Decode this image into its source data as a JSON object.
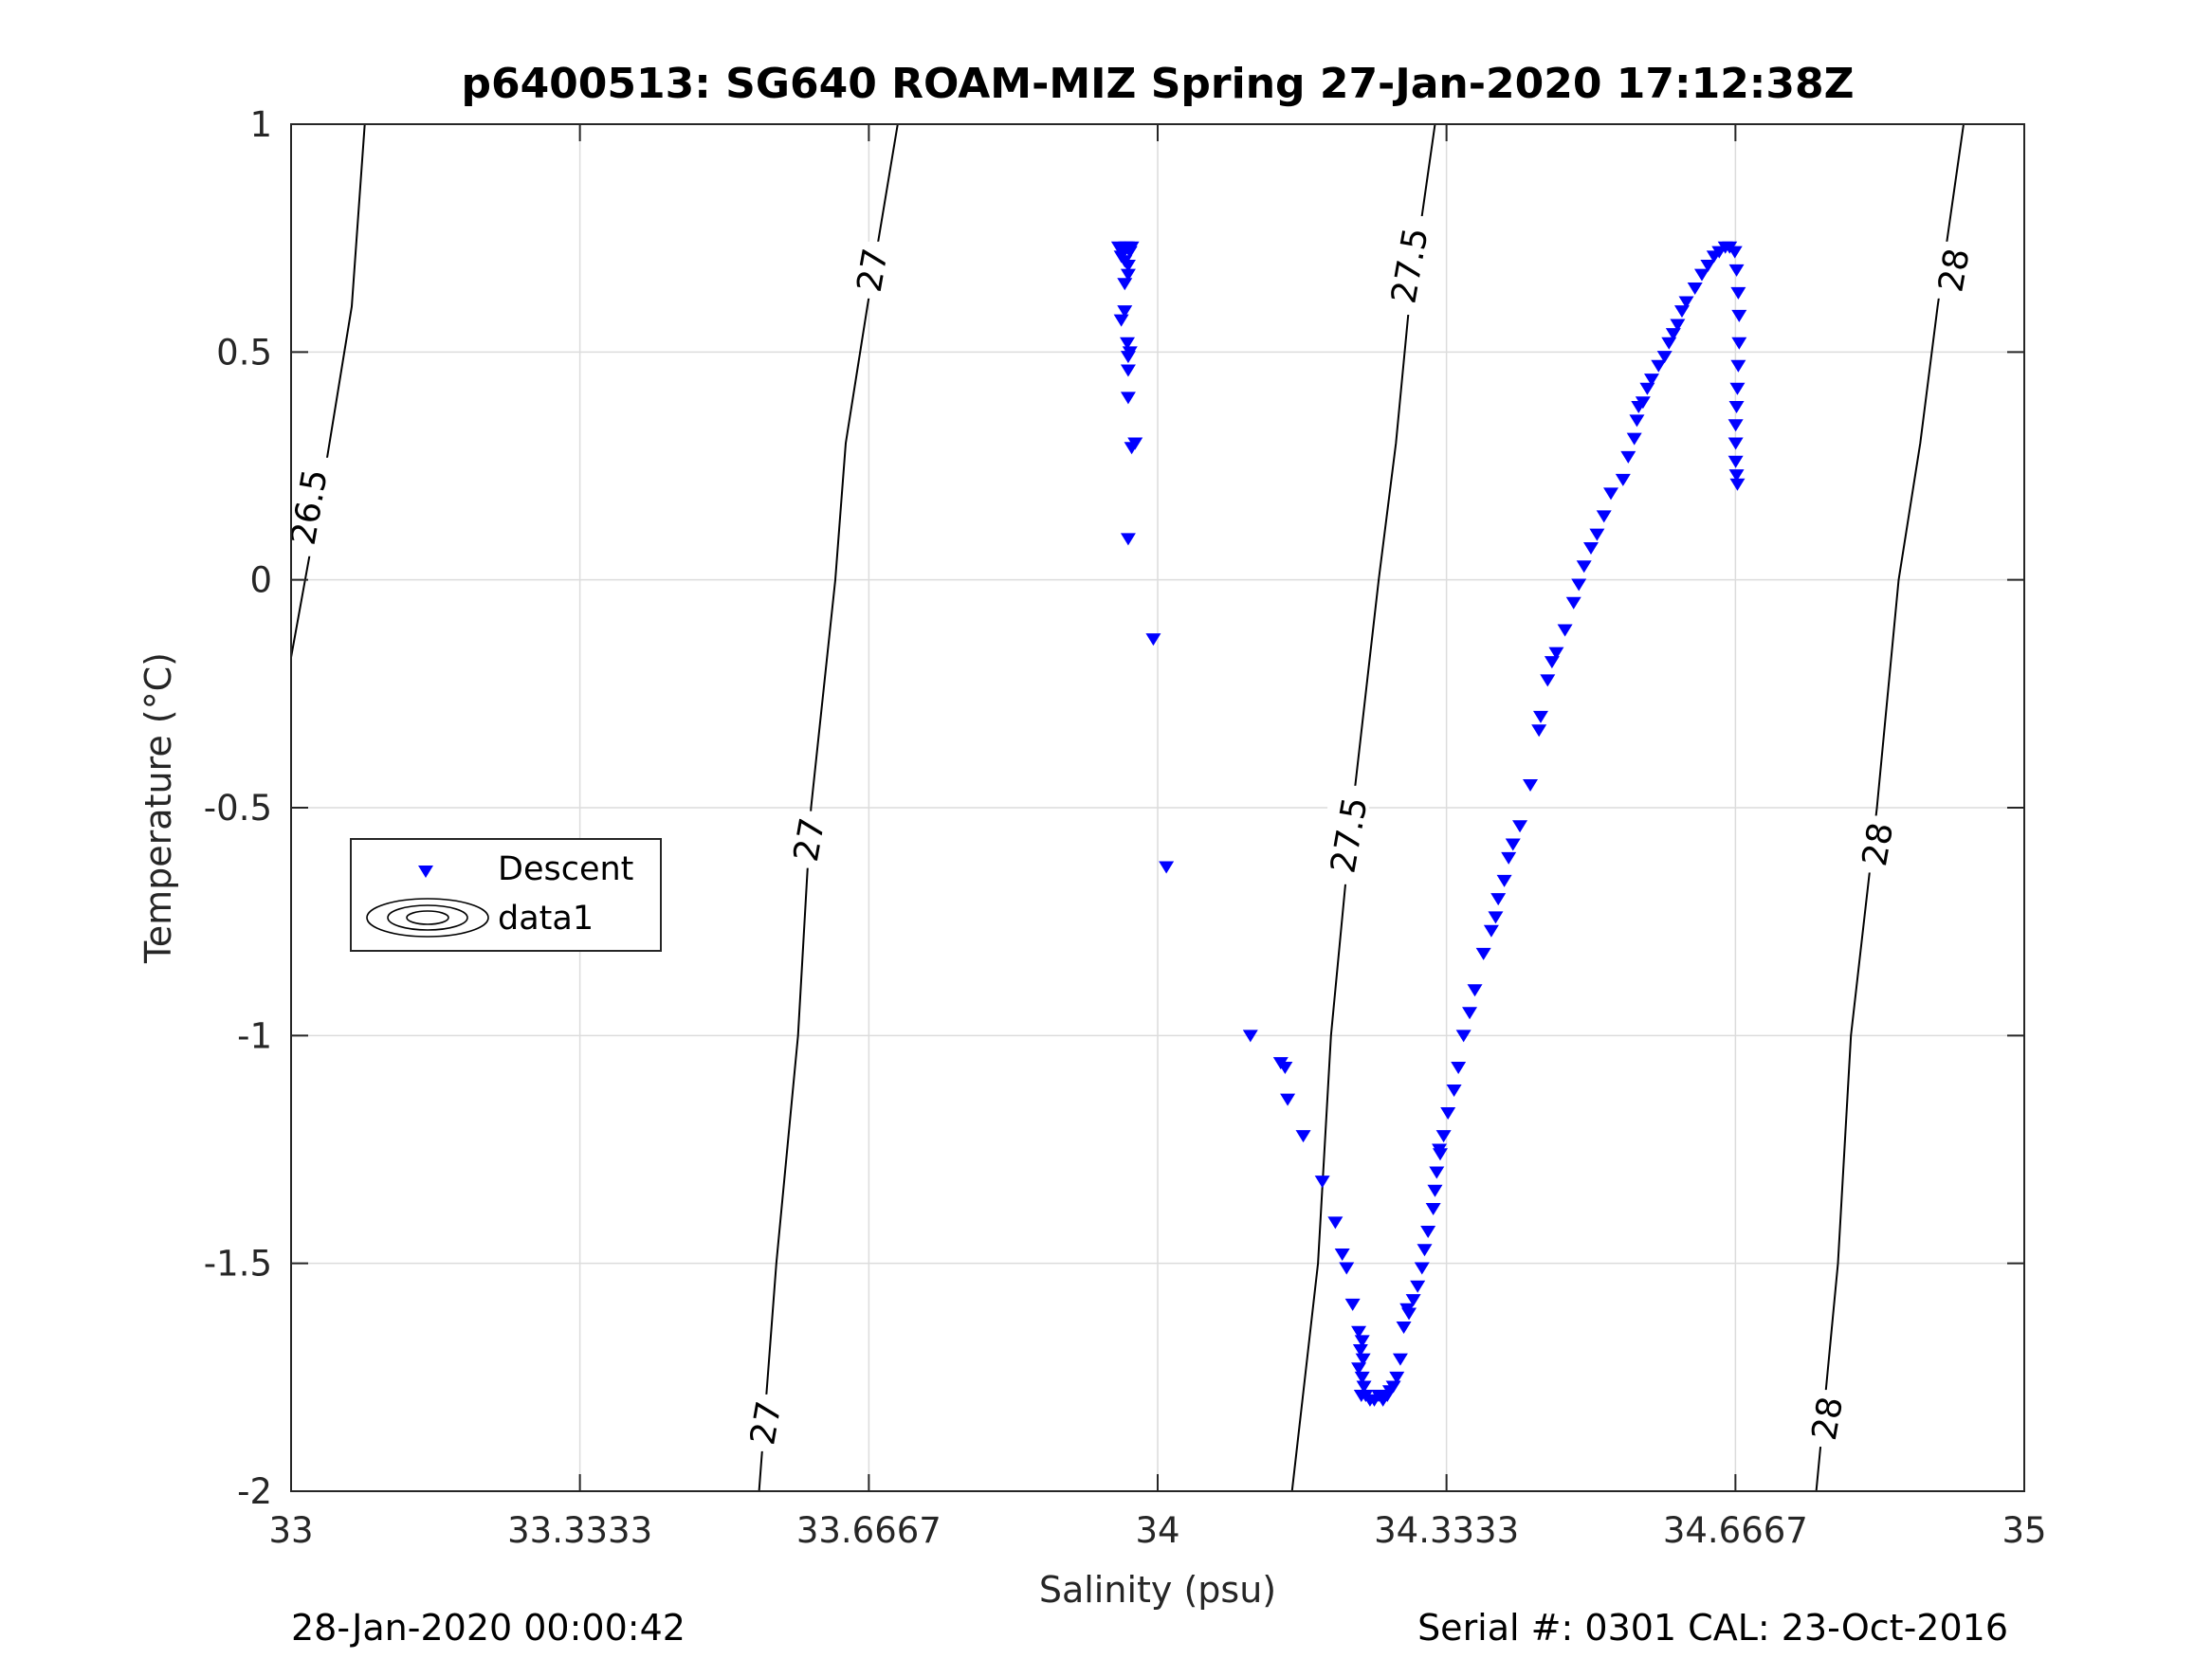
{
  "chart_data": {
    "type": "scatter",
    "title": "p6400513: SG640 ROAM-MIZ Spring 27-Jan-2020 17:12:38Z",
    "xlabel": "Salinity (psu)",
    "ylabel": "Temperature (°C)",
    "xlim": [
      33,
      35
    ],
    "ylim": [
      -2,
      1
    ],
    "xticks": [
      33,
      33.3333,
      33.6667,
      34,
      34.3333,
      34.6667,
      35
    ],
    "xtick_labels": [
      "33",
      "33.3333",
      "33.6667",
      "34",
      "34.3333",
      "34.6667",
      "35"
    ],
    "yticks": [
      -2,
      -1.5,
      -1,
      -0.5,
      0,
      0.5,
      1
    ],
    "ytick_labels": [
      "-2",
      "-1.5",
      "-1",
      "-0.5",
      "0",
      "0.5",
      "1"
    ],
    "grid": true,
    "legend": {
      "placement": "left-middle",
      "entries": [
        "Descent",
        "data1"
      ]
    },
    "series": [
      {
        "name": "Descent",
        "marker": "triangle-down",
        "color": "#0000ff",
        "points": [
          [
            33.955,
            0.73
          ],
          [
            33.96,
            0.72
          ],
          [
            33.965,
            0.73
          ],
          [
            33.958,
            0.71
          ],
          [
            33.962,
            0.7
          ],
          [
            33.968,
            0.72
          ],
          [
            33.97,
            0.73
          ],
          [
            33.963,
            0.73
          ],
          [
            33.966,
            0.69
          ],
          [
            33.962,
            0.65
          ],
          [
            33.966,
            0.67
          ],
          [
            33.958,
            0.57
          ],
          [
            33.962,
            0.59
          ],
          [
            33.965,
            0.52
          ],
          [
            33.966,
            0.49
          ],
          [
            33.968,
            0.5
          ],
          [
            33.966,
            0.46
          ],
          [
            33.966,
            0.4
          ],
          [
            33.974,
            0.3
          ],
          [
            33.97,
            0.29
          ],
          [
            33.966,
            0.09
          ],
          [
            33.995,
            -0.13
          ],
          [
            34.01,
            -0.63
          ],
          [
            34.107,
            -1.0
          ],
          [
            34.142,
            -1.06
          ],
          [
            34.147,
            -1.07
          ],
          [
            34.15,
            -1.14
          ],
          [
            34.168,
            -1.22
          ],
          [
            34.19,
            -1.32
          ],
          [
            34.205,
            -1.41
          ],
          [
            34.213,
            -1.48
          ],
          [
            34.218,
            -1.51
          ],
          [
            34.225,
            -1.59
          ],
          [
            34.232,
            -1.65
          ],
          [
            34.236,
            -1.67
          ],
          [
            34.234,
            -1.69
          ],
          [
            34.237,
            -1.71
          ],
          [
            34.232,
            -1.73
          ],
          [
            34.236,
            -1.75
          ],
          [
            34.238,
            -1.77
          ],
          [
            34.235,
            -1.79
          ],
          [
            34.24,
            -1.79
          ],
          [
            34.245,
            -1.8
          ],
          [
            34.25,
            -1.8
          ],
          [
            34.255,
            -1.79
          ],
          [
            34.26,
            -1.8
          ],
          [
            34.265,
            -1.79
          ],
          [
            34.268,
            -1.78
          ],
          [
            34.272,
            -1.77
          ],
          [
            34.276,
            -1.75
          ],
          [
            34.28,
            -1.71
          ],
          [
            34.284,
            -1.64
          ],
          [
            34.288,
            -1.6
          ],
          [
            34.29,
            -1.61
          ],
          [
            34.295,
            -1.58
          ],
          [
            34.3,
            -1.55
          ],
          [
            34.305,
            -1.51
          ],
          [
            34.308,
            -1.47
          ],
          [
            34.312,
            -1.43
          ],
          [
            34.318,
            -1.38
          ],
          [
            34.32,
            -1.34
          ],
          [
            34.322,
            -1.3
          ],
          [
            34.326,
            -1.26
          ],
          [
            34.325,
            -1.25
          ],
          [
            34.33,
            -1.22
          ],
          [
            34.335,
            -1.17
          ],
          [
            34.342,
            -1.12
          ],
          [
            34.347,
            -1.07
          ],
          [
            34.353,
            -1.0
          ],
          [
            34.36,
            -0.95
          ],
          [
            34.366,
            -0.9
          ],
          [
            34.376,
            -0.82
          ],
          [
            34.385,
            -0.77
          ],
          [
            34.39,
            -0.74
          ],
          [
            34.393,
            -0.7
          ],
          [
            34.4,
            -0.66
          ],
          [
            34.405,
            -0.61
          ],
          [
            34.41,
            -0.58
          ],
          [
            34.418,
            -0.54
          ],
          [
            34.43,
            -0.45
          ],
          [
            34.44,
            -0.33
          ],
          [
            34.442,
            -0.3
          ],
          [
            34.45,
            -0.22
          ],
          [
            34.455,
            -0.18
          ],
          [
            34.46,
            -0.16
          ],
          [
            34.47,
            -0.11
          ],
          [
            34.48,
            -0.05
          ],
          [
            34.486,
            -0.01
          ],
          [
            34.492,
            0.03
          ],
          [
            34.5,
            0.07
          ],
          [
            34.507,
            0.1
          ],
          [
            34.515,
            0.14
          ],
          [
            34.523,
            0.19
          ],
          [
            34.537,
            0.22
          ],
          [
            34.543,
            0.27
          ],
          [
            34.55,
            0.31
          ],
          [
            34.553,
            0.35
          ],
          [
            34.555,
            0.38
          ],
          [
            34.56,
            0.39
          ],
          [
            34.565,
            0.42
          ],
          [
            34.57,
            0.44
          ],
          [
            34.578,
            0.47
          ],
          [
            34.585,
            0.49
          ],
          [
            34.59,
            0.52
          ],
          [
            34.595,
            0.54
          ],
          [
            34.6,
            0.56
          ],
          [
            34.605,
            0.59
          ],
          [
            34.61,
            0.61
          ],
          [
            34.62,
            0.64
          ],
          [
            34.628,
            0.67
          ],
          [
            34.635,
            0.69
          ],
          [
            34.642,
            0.71
          ],
          [
            34.648,
            0.72
          ],
          [
            34.655,
            0.73
          ],
          [
            34.66,
            0.73
          ],
          [
            34.666,
            0.72
          ],
          [
            34.668,
            0.68
          ],
          [
            34.67,
            0.63
          ],
          [
            34.671,
            0.58
          ],
          [
            34.671,
            0.52
          ],
          [
            34.67,
            0.47
          ],
          [
            34.669,
            0.42
          ],
          [
            34.668,
            0.38
          ],
          [
            34.667,
            0.34
          ],
          [
            34.667,
            0.3
          ],
          [
            34.667,
            0.26
          ],
          [
            34.668,
            0.23
          ],
          [
            34.669,
            0.21
          ]
        ]
      },
      {
        "name": "data1",
        "type": "contour",
        "color": "#000000",
        "levels": [
          {
            "level": "26.5",
            "points": [
              [
                33.0,
                -0.17
              ],
              [
                33.04,
                0.25
              ],
              [
                33.07,
                0.6
              ],
              [
                33.085,
                1.0
              ]
            ]
          },
          {
            "level": "27",
            "points": [
              [
                33.54,
                -2.0
              ],
              [
                33.56,
                -1.5
              ],
              [
                33.585,
                -1.0
              ],
              [
                33.6,
                -0.5
              ],
              [
                33.628,
                0.0
              ],
              [
                33.64,
                0.3
              ],
              [
                33.665,
                0.6
              ],
              [
                33.7,
                1.0
              ]
            ]
          },
          {
            "level": "27.5",
            "points": [
              [
                34.155,
                -2.0
              ],
              [
                34.185,
                -1.5
              ],
              [
                34.2,
                -1.0
              ],
              [
                34.225,
                -0.5
              ],
              [
                34.255,
                0.0
              ],
              [
                34.275,
                0.3
              ],
              [
                34.29,
                0.6
              ],
              [
                34.32,
                1.0
              ]
            ]
          },
          {
            "level": "28",
            "points": [
              [
                34.76,
                -2.0
              ],
              [
                34.785,
                -1.5
              ],
              [
                34.8,
                -1.0
              ],
              [
                34.83,
                -0.5
              ],
              [
                34.855,
                0.0
              ],
              [
                34.88,
                0.3
              ],
              [
                34.9,
                0.6
              ],
              [
                34.93,
                1.0
              ]
            ]
          }
        ],
        "inline_labels": [
          {
            "text": "26.5",
            "x": 33.02,
            "y": 0.16
          },
          {
            "text": "27",
            "x": 33.547,
            "y": -1.85
          },
          {
            "text": "27",
            "x": 33.597,
            "y": -0.57
          },
          {
            "text": "27",
            "x": 33.67,
            "y": 0.68
          },
          {
            "text": "27.5",
            "x": 34.22,
            "y": -0.56
          },
          {
            "text": "27.5",
            "x": 34.29,
            "y": 0.69
          },
          {
            "text": "28",
            "x": 34.772,
            "y": -1.84
          },
          {
            "text": "28",
            "x": 34.83,
            "y": -0.58
          },
          {
            "text": "28",
            "x": 34.918,
            "y": 0.68
          }
        ]
      }
    ]
  },
  "footer": {
    "left": "28-Jan-2020 00:00:42",
    "right": "Serial #: 0301  CAL: 23-Oct-2016"
  }
}
